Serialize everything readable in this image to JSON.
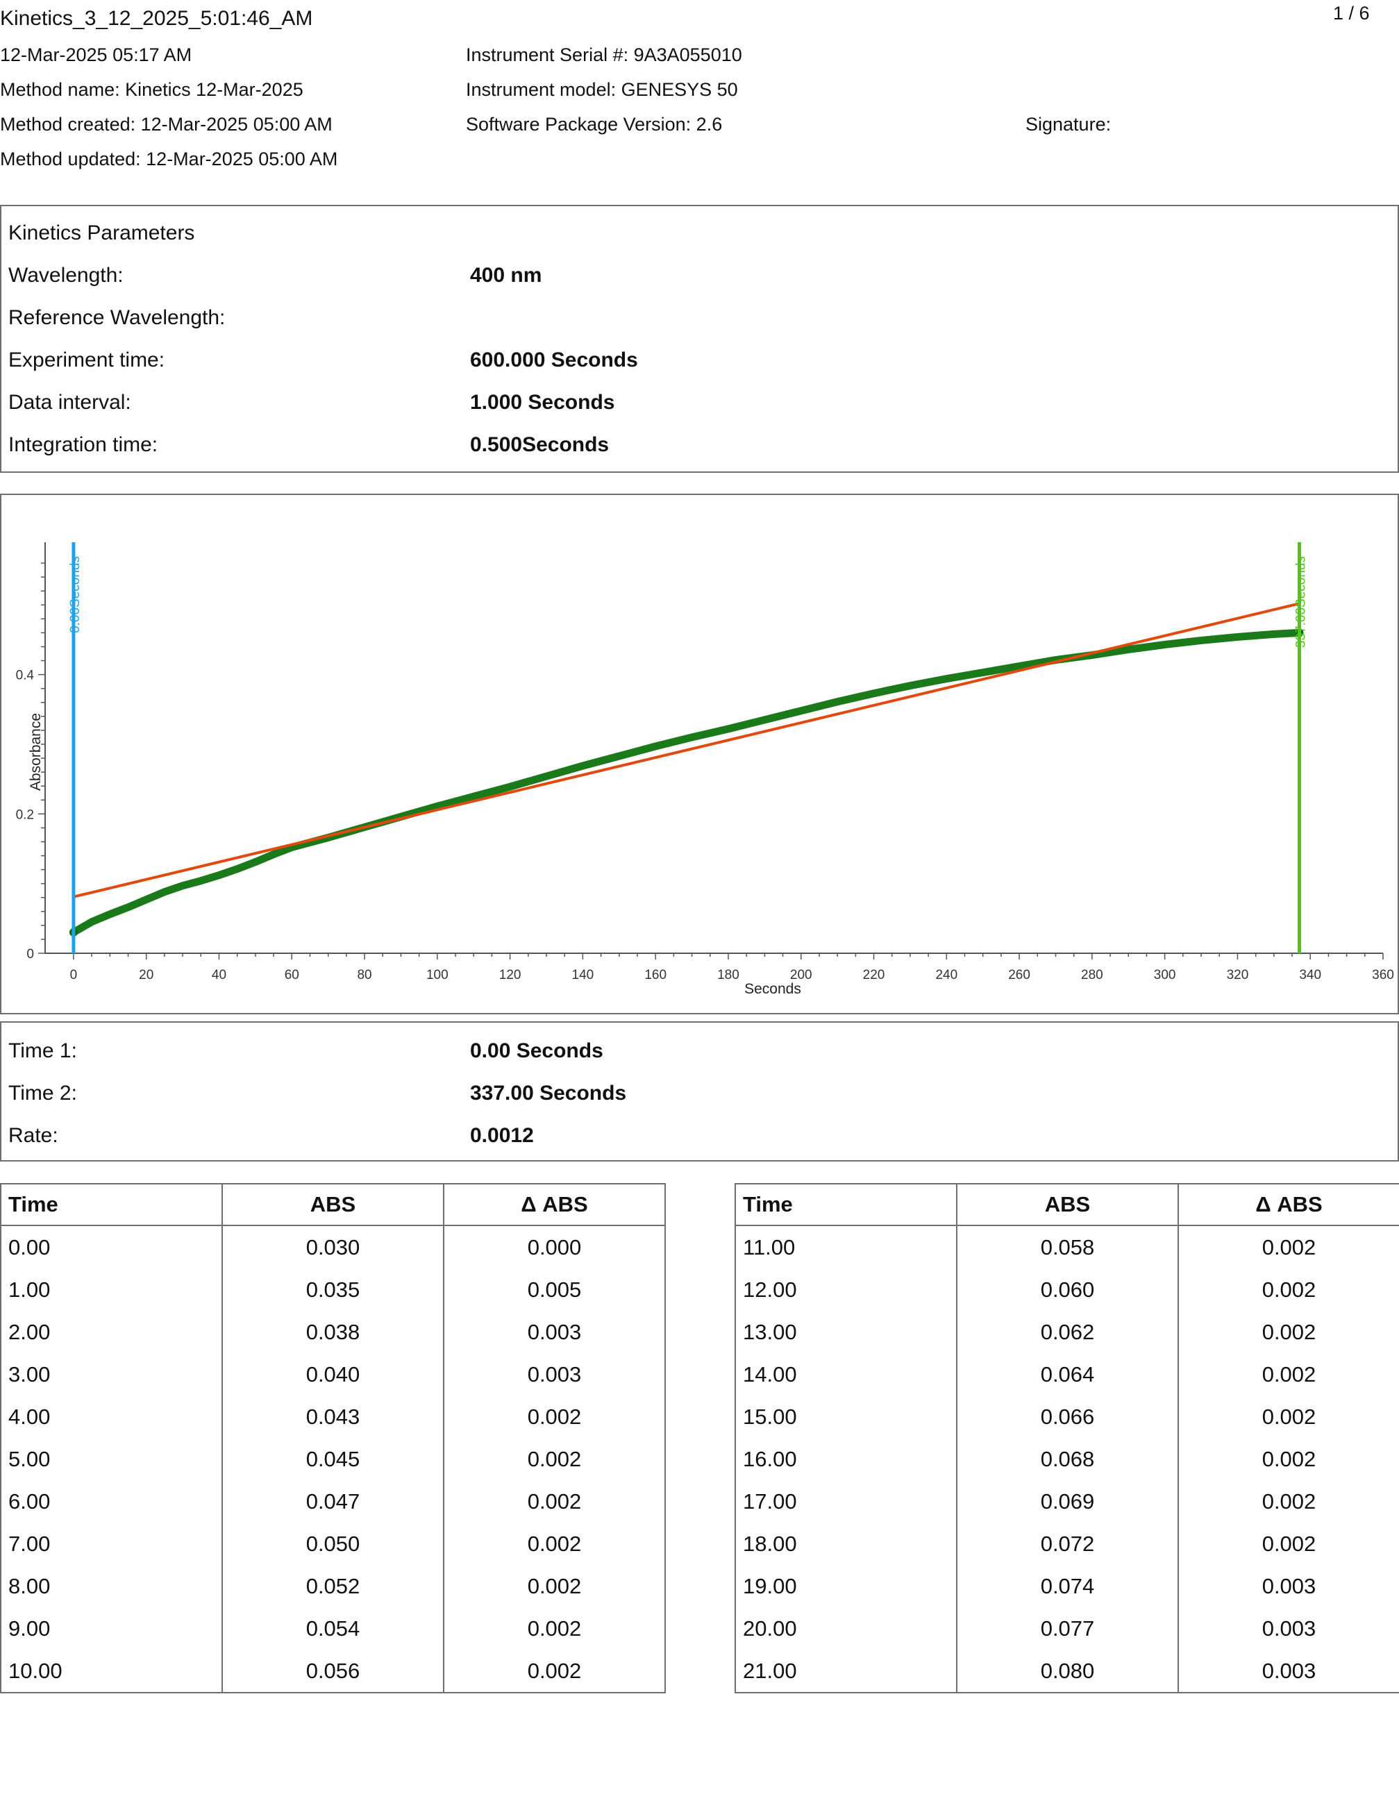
{
  "header": {
    "title": "Kinetics_3_12_2025_5:01:46_AM",
    "page": "1 / 6",
    "date": "12-Mar-2025 05:17 AM",
    "method_name": "Method name: Kinetics 12-Mar-2025",
    "method_created": "Method created: 12-Mar-2025 05:00 AM",
    "method_updated": "Method updated: 12-Mar-2025 05:00 AM",
    "serial": "Instrument Serial #: 9A3A055010",
    "model": "Instrument model: GENESYS 50",
    "software": "Software Package Version: 2.6",
    "signature": "Signature:"
  },
  "params": {
    "heading": "Kinetics Parameters",
    "rows": [
      {
        "label": "Wavelength:",
        "value": "400 nm"
      },
      {
        "label": "Reference Wavelength:",
        "value": ""
      },
      {
        "label": "Experiment time:",
        "value": "600.000 Seconds"
      },
      {
        "label": "Data interval:",
        "value": "1.000 Seconds"
      },
      {
        "label": "Integration time:",
        "value": "0.500Seconds"
      }
    ]
  },
  "chart_data": {
    "type": "line",
    "xlabel": "Seconds",
    "ylabel": "Absorbance",
    "xlim": [
      -8,
      360
    ],
    "ylim": [
      0,
      0.58
    ],
    "x_ticks": [
      "0",
      "20",
      "40",
      "60",
      "80",
      "100",
      "120",
      "140",
      "160",
      "180",
      "200",
      "220",
      "240",
      "260",
      "280",
      "300",
      "320",
      "340",
      "360"
    ],
    "y_ticks": [
      "0",
      "0.2",
      "0.4"
    ],
    "grid": false,
    "series": [
      {
        "color": "#1a7a1a",
        "x": [
          0,
          5,
          10,
          15,
          20,
          25,
          30,
          35,
          40,
          45,
          50,
          55,
          60,
          70,
          80,
          90,
          100,
          110,
          120,
          130,
          140,
          150,
          160,
          170,
          180,
          190,
          200,
          210,
          220,
          230,
          240,
          250,
          260,
          270,
          280,
          290,
          300,
          310,
          320,
          330,
          337
        ],
        "y": [
          0.03,
          0.045,
          0.056,
          0.066,
          0.077,
          0.088,
          0.097,
          0.104,
          0.112,
          0.121,
          0.131,
          0.142,
          0.152,
          0.166,
          0.181,
          0.196,
          0.211,
          0.225,
          0.239,
          0.254,
          0.269,
          0.283,
          0.297,
          0.31,
          0.322,
          0.335,
          0.348,
          0.361,
          0.373,
          0.384,
          0.394,
          0.403,
          0.412,
          0.421,
          0.428,
          0.436,
          0.443,
          0.449,
          0.454,
          0.458,
          0.46
        ]
      },
      {
        "color": "#e04a10",
        "x": [
          0,
          337
        ],
        "y": [
          0.081,
          0.502
        ]
      }
    ],
    "markers": [
      {
        "x": 0,
        "label": "0.00Seconds",
        "color": "#1fa3e8"
      },
      {
        "x": 337,
        "label": "337.00Seconds",
        "color": "#52c41a"
      }
    ]
  },
  "results": {
    "rows": [
      {
        "label": "Time 1:",
        "value": "0.00 Seconds"
      },
      {
        "label": "Time 2:",
        "value": "337.00 Seconds"
      },
      {
        "label": "Rate:",
        "value": "0.0012"
      }
    ]
  },
  "table": {
    "headers": [
      "Time",
      "ABS",
      "Δ ABS"
    ],
    "left": [
      [
        "0.00",
        "0.030",
        "0.000"
      ],
      [
        "1.00",
        "0.035",
        "0.005"
      ],
      [
        "2.00",
        "0.038",
        "0.003"
      ],
      [
        "3.00",
        "0.040",
        "0.003"
      ],
      [
        "4.00",
        "0.043",
        "0.002"
      ],
      [
        "5.00",
        "0.045",
        "0.002"
      ],
      [
        "6.00",
        "0.047",
        "0.002"
      ],
      [
        "7.00",
        "0.050",
        "0.002"
      ],
      [
        "8.00",
        "0.052",
        "0.002"
      ],
      [
        "9.00",
        "0.054",
        "0.002"
      ],
      [
        "10.00",
        "0.056",
        "0.002"
      ]
    ],
    "right": [
      [
        "11.00",
        "0.058",
        "0.002"
      ],
      [
        "12.00",
        "0.060",
        "0.002"
      ],
      [
        "13.00",
        "0.062",
        "0.002"
      ],
      [
        "14.00",
        "0.064",
        "0.002"
      ],
      [
        "15.00",
        "0.066",
        "0.002"
      ],
      [
        "16.00",
        "0.068",
        "0.002"
      ],
      [
        "17.00",
        "0.069",
        "0.002"
      ],
      [
        "18.00",
        "0.072",
        "0.002"
      ],
      [
        "19.00",
        "0.074",
        "0.003"
      ],
      [
        "20.00",
        "0.077",
        "0.003"
      ],
      [
        "21.00",
        "0.080",
        "0.003"
      ]
    ]
  }
}
